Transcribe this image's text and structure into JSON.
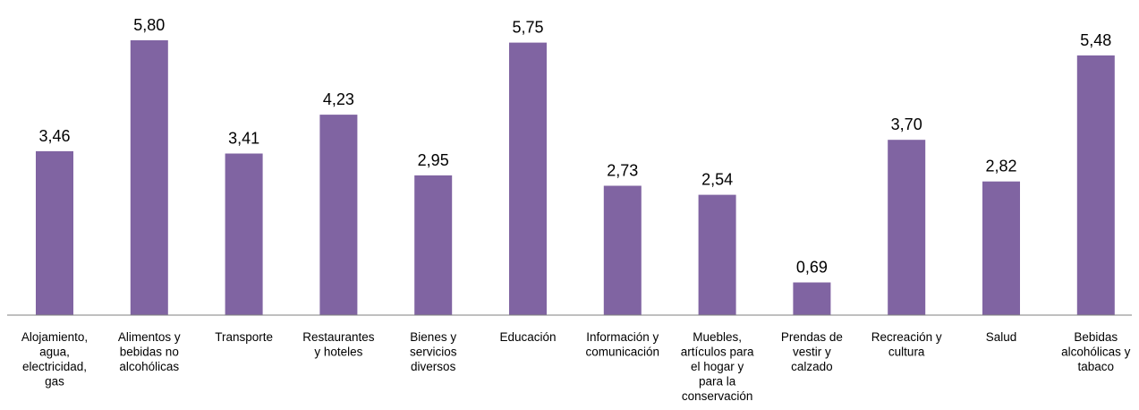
{
  "chart_data": {
    "type": "bar",
    "categories": [
      "Alojamiento, agua, electricidad, gas",
      "Alimentos y bebidas no alcohólicas",
      "Transporte",
      "Restaurantes y hoteles",
      "Bienes y servicios diversos",
      "Educación",
      "Información y comunicación",
      "Muebles, artículos para el hogar y para la conservación",
      "Prendas de vestir y calzado",
      "Recreación y cultura",
      "Salud",
      "Bebidas alcohólicas y tabaco"
    ],
    "category_lines": [
      [
        "Alojamiento,",
        "agua,",
        "electricidad,",
        "gas"
      ],
      [
        "Alimentos y",
        "bebidas no",
        "alcohólicas"
      ],
      [
        "Transporte"
      ],
      [
        "Restaurantes",
        "y hoteles"
      ],
      [
        "Bienes y",
        "servicios",
        "diversos"
      ],
      [
        "Educación"
      ],
      [
        "Información y",
        "comunicación"
      ],
      [
        "Muebles,",
        "artículos para",
        "el hogar y",
        "para la",
        "conservación"
      ],
      [
        "Prendas de",
        "vestir y",
        "calzado"
      ],
      [
        "Recreación y",
        "cultura"
      ],
      [
        "Salud"
      ],
      [
        "Bebidas",
        "alcohólicas y",
        "tabaco"
      ]
    ],
    "values": [
      3.46,
      5.8,
      3.41,
      4.23,
      2.95,
      5.75,
      2.73,
      2.54,
      0.69,
      3.7,
      2.82,
      5.48
    ],
    "value_labels": [
      "3,46",
      "5,80",
      "3,41",
      "4,23",
      "2,95",
      "5,75",
      "2,73",
      "2,54",
      "0,69",
      "3,70",
      "2,82",
      "5,48"
    ],
    "ylim": [
      0,
      5.8
    ],
    "grid": false,
    "legend": "none",
    "colors": {
      "bar": "#8064A2",
      "axis": "#7f7f7f",
      "text": "#000000"
    }
  }
}
